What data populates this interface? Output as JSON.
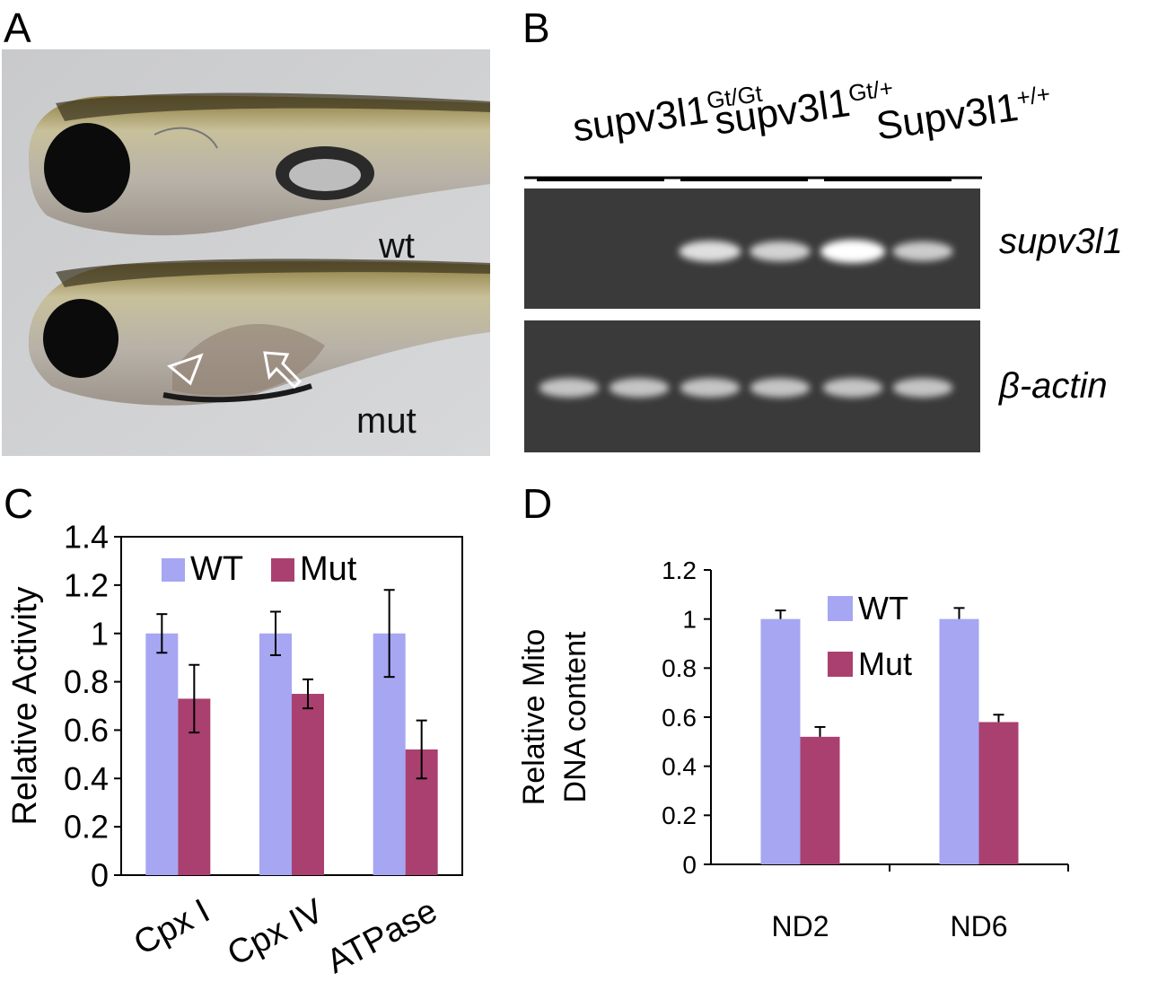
{
  "panels": {
    "a": {
      "letter": "A",
      "labels": {
        "top": "wt",
        "bottom": "mut"
      }
    },
    "b": {
      "letter": "B",
      "genotypes": [
        {
          "base": "supv3l1",
          "sup": "Gt/Gt"
        },
        {
          "base": "supv3l1",
          "sup": "Gt/+"
        },
        {
          "base": "Supv3l1",
          "sup": "+/+"
        }
      ],
      "gels": [
        {
          "label": "supv3l1",
          "band_intensity": [
            0,
            0,
            0.75,
            0.65,
            1.0,
            0.6
          ]
        },
        {
          "label": "β-actin",
          "band_intensity": [
            0.55,
            0.55,
            0.55,
            0.55,
            0.55,
            0.55
          ]
        }
      ]
    },
    "c": {
      "letter": "C"
    },
    "d": {
      "letter": "D"
    }
  },
  "colors": {
    "wt": "#a6a6f2",
    "mut": "#aa4070",
    "gel_bg": "#3a3a3a",
    "band": "#ffffff"
  },
  "chart_data": [
    {
      "id": "C",
      "type": "bar",
      "ylabel": "Relative Activity",
      "ylim": [
        0,
        1.4
      ],
      "yticks": [
        "0",
        "0.2",
        "0.4",
        "0.6",
        "0.8",
        "1",
        "1.2",
        "1.4"
      ],
      "categories": [
        "Cpx I",
        "Cpx IV",
        "ATPase"
      ],
      "series": [
        {
          "name": "WT",
          "values": [
            1.0,
            1.0,
            1.0
          ],
          "errors": [
            0.08,
            0.09,
            0.18
          ]
        },
        {
          "name": "Mut",
          "values": [
            0.73,
            0.75,
            0.52
          ],
          "errors": [
            0.14,
            0.06,
            0.12
          ]
        }
      ],
      "legend": "top"
    },
    {
      "id": "D",
      "type": "bar",
      "ylabel": [
        "Relative Mito",
        "DNA content"
      ],
      "ylim": [
        0,
        1.2
      ],
      "yticks": [
        "0",
        "0.2",
        "0.4",
        "0.6",
        "0.8",
        "1",
        "1.2"
      ],
      "categories": [
        "ND2",
        "ND6"
      ],
      "series": [
        {
          "name": "WT",
          "values": [
            1.0,
            1.0
          ],
          "errors": [
            0.035,
            0.045
          ]
        },
        {
          "name": "Mut",
          "values": [
            0.52,
            0.58
          ],
          "errors": [
            0.04,
            0.03
          ]
        }
      ],
      "legend": "top-right"
    }
  ]
}
